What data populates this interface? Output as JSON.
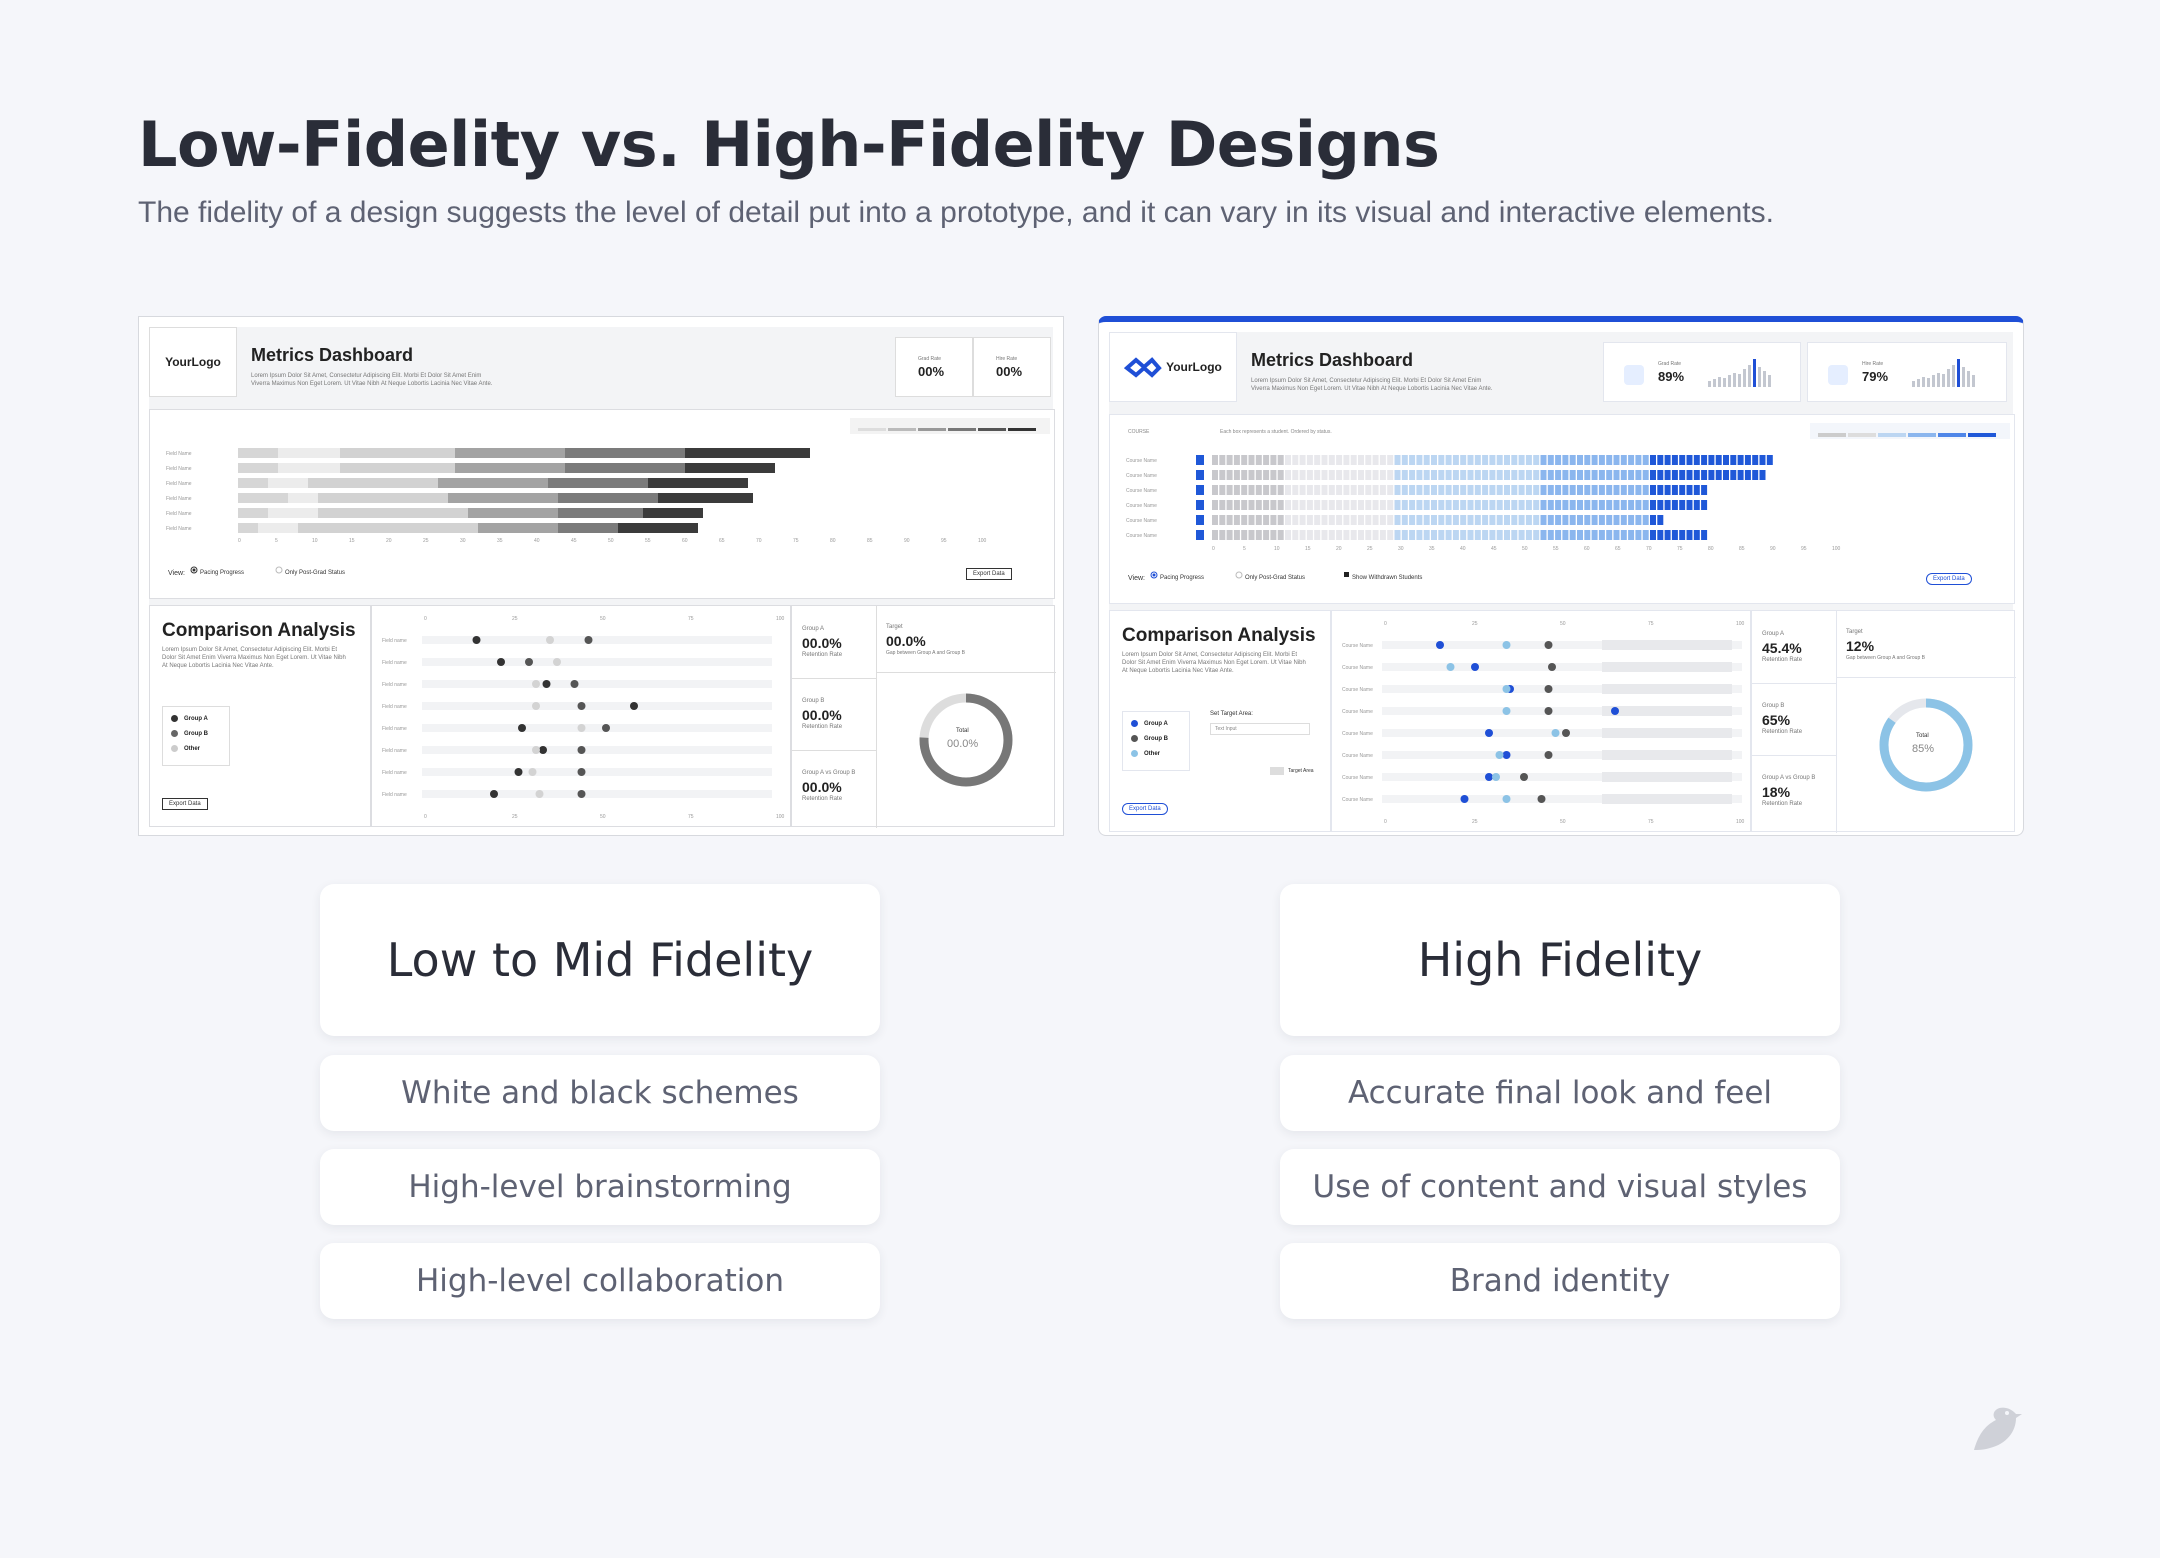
{
  "header": {
    "title": "Low-Fidelity vs. High-Fidelity Designs",
    "subtitle": "The fidelity of a design suggests the level of detail put into a prototype, and it can vary in its visual and interactive elements."
  },
  "lofi": {
    "logo": "YourLogo",
    "title": "Metrics Dashboard",
    "desc1": "Lorem Ipsum Dolor Sit Amet, Consectetur Adipiscing Elit. Morbi Et Dolor Sit Amet Enim",
    "desc2": "Viverra Maximus Non Eget Lorem. Ut Vitae Nibh At Neque Lobortis Lacinia Nec Vitae Ante.",
    "kpi1_label": "Grad Rate",
    "kpi1_val": "00%",
    "kpi2_label": "Hire Rate",
    "kpi2_val": "00%",
    "row_label": "Field Name",
    "view_label": "View:",
    "radio1": "Pacing Progress",
    "radio2": "Only Post-Grad Status",
    "export": "Export Data",
    "comp_title": "Comparison Analysis",
    "comp_desc": "Lorem Ipsum Dolor Sit Amet, Consectetur Adipiscing Elit. Morbi Et Dolor Sit Amet Enim Viverra Maximus Non Eget Lorem. Ut Vitae Nibh At Neque Lobortis Lacinia Nec Vitae Ante.",
    "legend": [
      "Group A",
      "Group B",
      "Other"
    ],
    "dot_row_label": "Field name",
    "stats": [
      {
        "label": "Group A",
        "value": "00.0%",
        "sub": "Retention Rate"
      },
      {
        "label": "Group B",
        "value": "00.0%",
        "sub": "Retention Rate"
      },
      {
        "label": "Group A vs Group B",
        "value": "00.0%",
        "sub": "Retention Rate"
      }
    ],
    "target_label": "Target",
    "target_val": "00.0%",
    "target_sub": "Gap between Group A and Group B",
    "total_label": "Total",
    "total_val": "00.0%",
    "axis_ticks": [
      "0",
      "25",
      "50",
      "75",
      "100"
    ]
  },
  "hifi": {
    "logo": "YourLogo",
    "title": "Metrics Dashboard",
    "desc1": "Lorem Ipsum Dolor Sit Amet, Consectetur Adipiscing Elit. Morbi Et Dolor Sit Amet Enim",
    "desc2": "Viverra Maximus Non Eget Lorem. Ut Vitae Nibh At Neque Lobortis Lacinia Nec Vitae Ante.",
    "kpi1_label": "Grad Rate",
    "kpi1_val": "89%",
    "kpi2_label": "Hire Rate",
    "kpi2_val": "79%",
    "course_header": "COURSE",
    "course_note": "Each box represents a student. Ordered by status.",
    "row_label": "Course Name",
    "view_label": "View:",
    "radio1": "Pacing Progress",
    "radio2": "Only Post-Grad Status",
    "check1": "Show Withdrawn Students",
    "export": "Export Data",
    "comp_title": "Comparison Analysis",
    "comp_desc": "Lorem Ipsum Dolor Sit Amet, Consectetur Adipiscing Elit. Morbi Et Dolor Sit Amet Enim Viverra Maximus Non Eget Lorem. Ut Vitae Nibh At Neque Lobortis Lacinia Nec Vitae Ante.",
    "legend": [
      "Group A",
      "Group B",
      "Other"
    ],
    "target_area_label": "Set Target Area:",
    "target_input_placeholder": "Text Input",
    "target_area_legend": "Target Area",
    "stats": [
      {
        "label": "Group A",
        "value": "45.4%",
        "sub": "Retention Rate"
      },
      {
        "label": "Group B",
        "value": "65%",
        "sub": "Retention Rate"
      },
      {
        "label": "Group A vs Group B",
        "value": "18%",
        "sub": "Retention Rate"
      }
    ],
    "target_label": "Target",
    "target_val": "12%",
    "target_sub": "Gap between Group A and Group B",
    "total_label": "Total",
    "total_val": "85%",
    "axis_ticks": [
      "0",
      "25",
      "50",
      "75",
      "100"
    ]
  },
  "left_column": {
    "heading": "Low to Mid Fidelity",
    "items": [
      "White and black schemes",
      "High-level brainstorming",
      "High-level collaboration"
    ]
  },
  "right_column": {
    "heading": "High Fidelity",
    "items": [
      "Accurate final look and feel",
      "Use of content and visual styles",
      "Brand identity"
    ]
  },
  "colors": {
    "accent": "#1f4fd6",
    "light_blue": "#8cc3e6",
    "dark": "#2a2d38",
    "muted": "#5e6273",
    "background": "#f5f6fa"
  },
  "icons": [
    "bird-logo-icon",
    "graduation-icon",
    "hire-icon",
    "export-icon"
  ]
}
